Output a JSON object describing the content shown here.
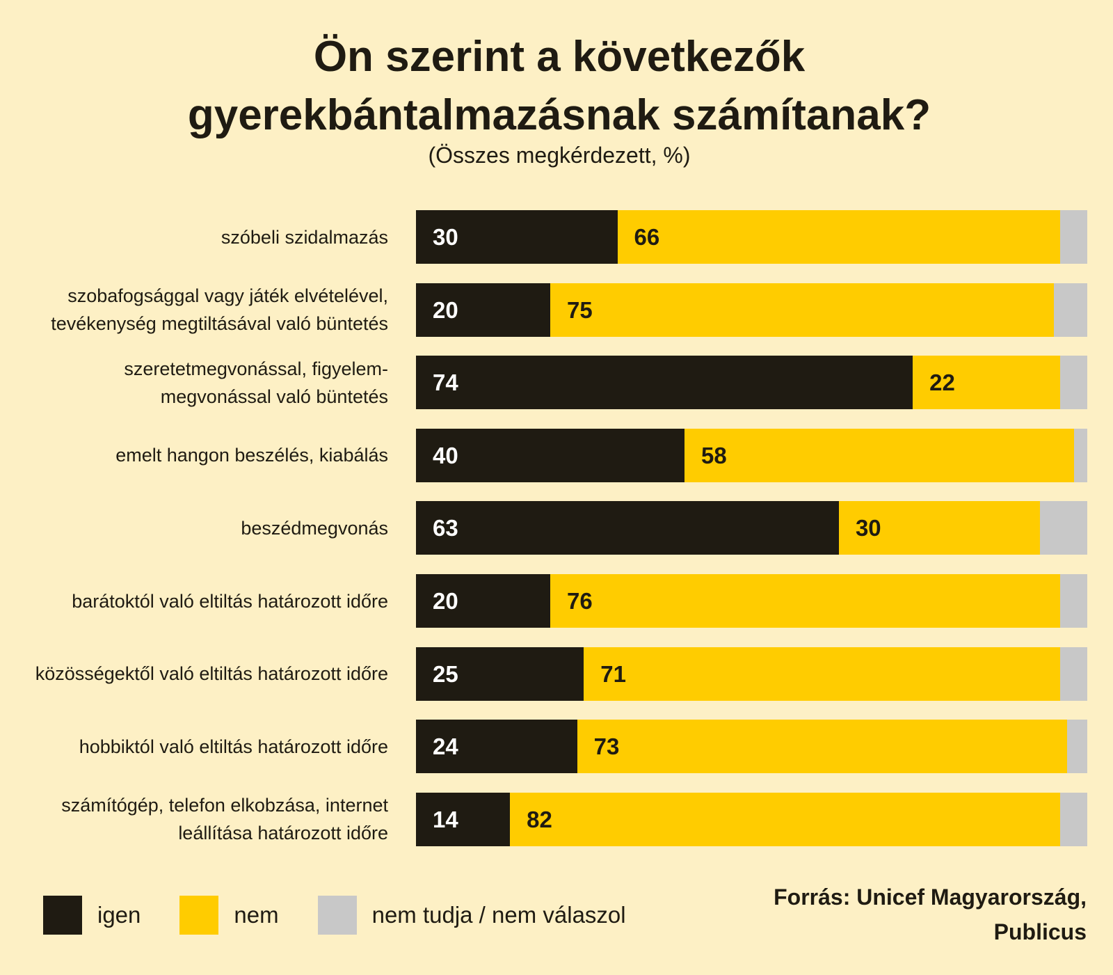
{
  "colors": {
    "background": "#fdf0c5",
    "text": "#1f1b12"
  },
  "chart_data": {
    "type": "bar",
    "orientation": "horizontal",
    "stacked": true,
    "title": "Ön szerint a következők\ngyerekbántalmazásnak számítanak?",
    "subtitle": "(Összes megkérdezett, %)",
    "categories": [
      "szóbeli szidalmazás",
      "szobafogsággal vagy játék elvételével,\ntevékenység megtiltásával való büntetés",
      "szeretetmegvonással, figyelem-\nmegvonással való büntetés",
      "emelt hangon beszélés, kiabálás",
      "beszédmegvonás",
      "barátoktól való eltiltás határozott időre",
      "közösségektől való eltiltás határozott időre",
      "hobbiktól való eltiltás határozott időre",
      "számítógép, telefon elkobzása, internet\nleállítása határozott időre"
    ],
    "series": [
      {
        "name": "igen",
        "color": "#1f1b12",
        "label_color": "#ffffff",
        "data_labels": true,
        "values": [
          30,
          20,
          74,
          40,
          63,
          20,
          25,
          24,
          14
        ]
      },
      {
        "name": "nem",
        "color": "#ffcc00",
        "label_color": "#1f1b12",
        "data_labels": true,
        "values": [
          66,
          75,
          22,
          58,
          30,
          76,
          71,
          73,
          82
        ]
      },
      {
        "name": "nem tudja / nem válaszol",
        "color": "#c8c8c8",
        "data_labels": false,
        "values": [
          4,
          5,
          4,
          2,
          7,
          4,
          4,
          3,
          4
        ]
      }
    ],
    "xlim": [
      0,
      100
    ],
    "grid": false,
    "legend": "bottom-left"
  },
  "footer": {
    "source": "Forrás: Unicef Magyarország,\nPublicus"
  }
}
